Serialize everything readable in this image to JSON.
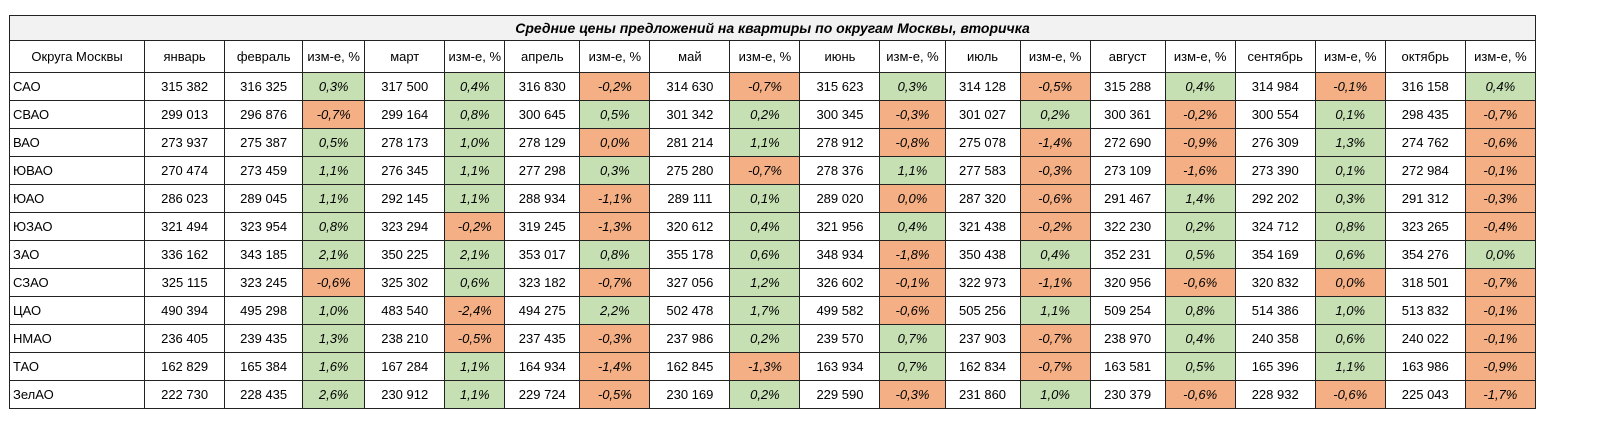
{
  "table": {
    "title": "Средние цены предложений на  квартиры по округам Москвы, вторичка",
    "header": [
      "Округа Москвы",
      "январь",
      "февраль",
      "изм-е, %",
      "март",
      "изм-е, %",
      "апрель",
      "изм-е, %",
      "май",
      "изм-е, %",
      "июнь",
      "изм-е, %",
      "июль",
      "изм-е, %",
      "август",
      "изм-е, %",
      "сентябрь",
      "изм-е, %",
      "октябрь",
      "изм-е, %"
    ],
    "rows": [
      [
        "САО",
        "315 382",
        "316 325",
        "0,3%",
        "317 500",
        "0,4%",
        "316 830",
        "-0,2%",
        "314 630",
        "-0,7%",
        "315 623",
        "0,3%",
        "314 128",
        "-0,5%",
        "315 288",
        "0,4%",
        "314 984",
        "-0,1%",
        "316 158",
        "0,4%"
      ],
      [
        "СВАО",
        "299 013",
        "296 876",
        "-0,7%",
        "299 164",
        "0,8%",
        "300 645",
        "0,5%",
        "301 342",
        "0,2%",
        "300 345",
        "-0,3%",
        "301 027",
        "0,2%",
        "300 361",
        "-0,2%",
        "300 554",
        "0,1%",
        "298 435",
        "-0,7%"
      ],
      [
        "ВАО",
        "273 937",
        "275 387",
        "0,5%",
        "278 173",
        "1,0%",
        "278 129",
        "0,0%",
        "281 214",
        "1,1%",
        "278 912",
        "-0,8%",
        "275 078",
        "-1,4%",
        "272 690",
        "-0,9%",
        "276 309",
        "1,3%",
        "274 762",
        "-0,6%"
      ],
      [
        "ЮВАО",
        "270 474",
        "273 459",
        "1,1%",
        "276 345",
        "1,1%",
        "277 298",
        "0,3%",
        "275 280",
        "-0,7%",
        "278 376",
        "1,1%",
        "277 583",
        "-0,3%",
        "273 109",
        "-1,6%",
        "273 390",
        "0,1%",
        "272 984",
        "-0,1%"
      ],
      [
        "ЮАО",
        "286 023",
        "289 045",
        "1,1%",
        "292 145",
        "1,1%",
        "288 934",
        "-1,1%",
        "289 111",
        "0,1%",
        "289 020",
        "0,0%",
        "287 320",
        "-0,6%",
        "291 467",
        "1,4%",
        "292 202",
        "0,3%",
        "291 312",
        "-0,3%"
      ],
      [
        "ЮЗАО",
        "321 494",
        "323 954",
        "0,8%",
        "323 294",
        "-0,2%",
        "319 245",
        "-1,3%",
        "320 612",
        "0,4%",
        "321 956",
        "0,4%",
        "321 438",
        "-0,2%",
        "322 230",
        "0,2%",
        "324 712",
        "0,8%",
        "323 265",
        "-0,4%"
      ],
      [
        "ЗАО",
        "336 162",
        "343 185",
        "2,1%",
        "350 225",
        "2,1%",
        "353 017",
        "0,8%",
        "355 178",
        "0,6%",
        "348 934",
        "-1,8%",
        "350 438",
        "0,4%",
        "352 231",
        "0,5%",
        "354 169",
        "0,6%",
        "354 276",
        "0,0%"
      ],
      [
        "СЗАО",
        "325 115",
        "323 245",
        "-0,6%",
        "325 302",
        "0,6%",
        "323 182",
        "-0,7%",
        "327 056",
        "1,2%",
        "326 602",
        "-0,1%",
        "322 973",
        "-1,1%",
        "320 956",
        "-0,6%",
        "320 832",
        "0,0%",
        "318 501",
        "-0,7%"
      ],
      [
        "ЦАО",
        "490 394",
        "495 298",
        "1,0%",
        "483 540",
        "-2,4%",
        "494 275",
        "2,2%",
        "502 478",
        "1,7%",
        "499 582",
        "-0,6%",
        "505 256",
        "1,1%",
        "509 254",
        "0,8%",
        "514 386",
        "1,0%",
        "513 832",
        "-0,1%"
      ],
      [
        "НМАО",
        "236 405",
        "239 435",
        "1,3%",
        "238 210",
        "-0,5%",
        "237 435",
        "-0,3%",
        "237 986",
        "0,2%",
        "239 570",
        "0,7%",
        "237 903",
        "-0,7%",
        "238 970",
        "0,4%",
        "240 358",
        "0,6%",
        "240 022",
        "-0,1%"
      ],
      [
        "ТАО",
        "162 829",
        "165 384",
        "1,6%",
        "167 284",
        "1,1%",
        "164 934",
        "-1,4%",
        "162 845",
        "-1,3%",
        "163 934",
        "0,7%",
        "162 834",
        "-0,7%",
        "163 581",
        "0,5%",
        "165 396",
        "1,1%",
        "163 986",
        "-0,9%"
      ],
      [
        "ЗелАО",
        "222 730",
        "228 435",
        "2,6%",
        "230 912",
        "1,1%",
        "229 724",
        "-0,5%",
        "230 169",
        "0,2%",
        "229 590",
        "-0,3%",
        "231 860",
        "1,0%",
        "230 379",
        "-0,6%",
        "228 932",
        "-0,6%",
        "225 043",
        "-1,7%"
      ]
    ],
    "change_colors": [
      [
        "#c6e0b4",
        "#c6e0b4",
        "#f4b084",
        "#f4b084",
        "#c6e0b4",
        "#f4b084",
        "#c6e0b4",
        "#f4b084",
        "#c6e0b4"
      ],
      [
        "#f4b084",
        "#c6e0b4",
        "#c6e0b4",
        "#c6e0b4",
        "#f4b084",
        "#c6e0b4",
        "#f4b084",
        "#c6e0b4",
        "#f4b084"
      ],
      [
        "#c6e0b4",
        "#c6e0b4",
        "#f4b084",
        "#c6e0b4",
        "#f4b084",
        "#f4b084",
        "#f4b084",
        "#c6e0b4",
        "#f4b084"
      ],
      [
        "#c6e0b4",
        "#c6e0b4",
        "#c6e0b4",
        "#f4b084",
        "#c6e0b4",
        "#f4b084",
        "#f4b084",
        "#c6e0b4",
        "#f4b084"
      ],
      [
        "#c6e0b4",
        "#c6e0b4",
        "#f4b084",
        "#c6e0b4",
        "#f4b084",
        "#f4b084",
        "#c6e0b4",
        "#c6e0b4",
        "#f4b084"
      ],
      [
        "#c6e0b4",
        "#f4b084",
        "#f4b084",
        "#c6e0b4",
        "#c6e0b4",
        "#f4b084",
        "#c6e0b4",
        "#c6e0b4",
        "#f4b084"
      ],
      [
        "#c6e0b4",
        "#c6e0b4",
        "#c6e0b4",
        "#c6e0b4",
        "#f4b084",
        "#c6e0b4",
        "#c6e0b4",
        "#c6e0b4",
        "#c6e0b4"
      ],
      [
        "#f4b084",
        "#c6e0b4",
        "#f4b084",
        "#c6e0b4",
        "#f4b084",
        "#f4b084",
        "#f4b084",
        "#f4b084",
        "#f4b084"
      ],
      [
        "#c6e0b4",
        "#f4b084",
        "#c6e0b4",
        "#c6e0b4",
        "#f4b084",
        "#c6e0b4",
        "#c6e0b4",
        "#c6e0b4",
        "#f4b084"
      ],
      [
        "#c6e0b4",
        "#f4b084",
        "#f4b084",
        "#c6e0b4",
        "#c6e0b4",
        "#f4b084",
        "#c6e0b4",
        "#c6e0b4",
        "#f4b084"
      ],
      [
        "#c6e0b4",
        "#c6e0b4",
        "#f4b084",
        "#f4b084",
        "#c6e0b4",
        "#f4b084",
        "#c6e0b4",
        "#c6e0b4",
        "#f4b084"
      ],
      [
        "#c6e0b4",
        "#c6e0b4",
        "#f4b084",
        "#c6e0b4",
        "#f4b084",
        "#c6e0b4",
        "#f4b084",
        "#f4b084",
        "#f4b084"
      ]
    ]
  }
}
